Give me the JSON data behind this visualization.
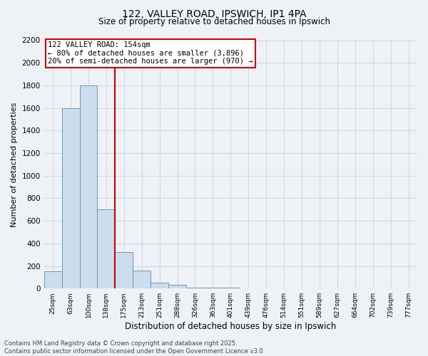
{
  "title1": "122, VALLEY ROAD, IPSWICH, IP1 4PA",
  "title2": "Size of property relative to detached houses in Ipswich",
  "xlabel": "Distribution of detached houses by size in Ipswich",
  "ylabel": "Number of detached properties",
  "categories": [
    "25sqm",
    "63sqm",
    "100sqm",
    "138sqm",
    "175sqm",
    "213sqm",
    "251sqm",
    "288sqm",
    "326sqm",
    "363sqm",
    "401sqm",
    "439sqm",
    "476sqm",
    "514sqm",
    "551sqm",
    "589sqm",
    "627sqm",
    "664sqm",
    "702sqm",
    "739sqm",
    "777sqm"
  ],
  "values": [
    150,
    1600,
    1800,
    700,
    320,
    160,
    50,
    30,
    10,
    5,
    5,
    2,
    2,
    0,
    0,
    0,
    0,
    0,
    0,
    0,
    0
  ],
  "bar_color": "#ccdded",
  "bar_edge_color": "#6699bb",
  "vline_position": 3.5,
  "annotation_title": "122 VALLEY ROAD: 154sqm",
  "annotation_line1": "← 80% of detached houses are smaller (3,896)",
  "annotation_line2": "20% of semi-detached houses are larger (970) →",
  "annotation_box_facecolor": "white",
  "annotation_box_edgecolor": "#cc0000",
  "vline_color": "#cc0000",
  "ylim_max": 2200,
  "ytick_step": 200,
  "footer1": "Contains HM Land Registry data © Crown copyright and database right 2025.",
  "footer2": "Contains public sector information licensed under the Open Government Licence v3.0.",
  "bg_color": "#eef2f7",
  "grid_color": "#d0d8e4",
  "plot_bg_color": "#eef2f7"
}
